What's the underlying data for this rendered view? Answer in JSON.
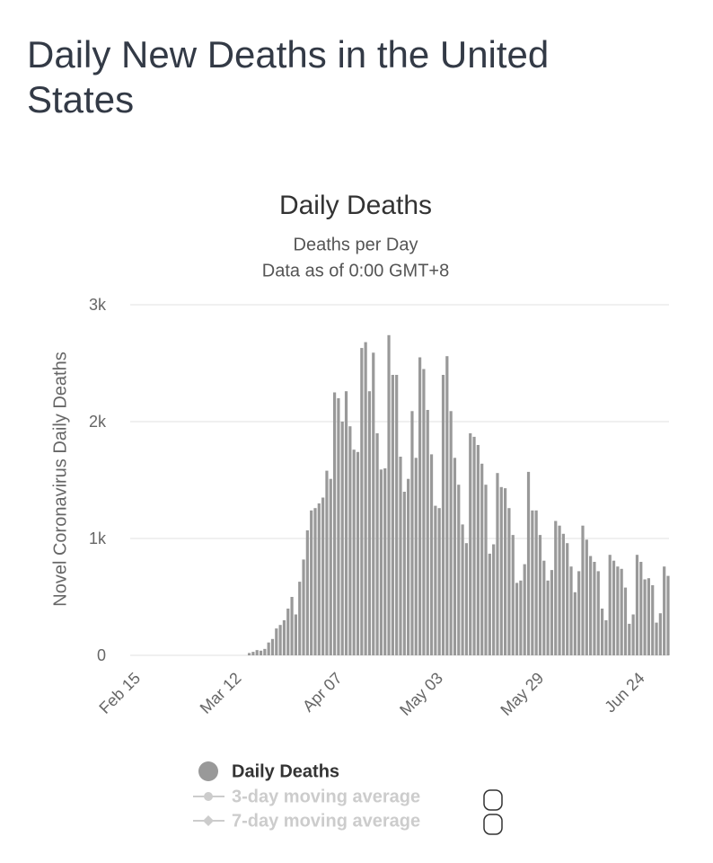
{
  "page_title": "Daily New Deaths in the United States",
  "chart_data": {
    "type": "bar",
    "title": "Daily Deaths",
    "subtitle": "Deaths per Day",
    "note": "Data as of 0:00 GMT+8",
    "y_label": "Novel Coronavirus Daily Deaths",
    "categories": [
      "Feb 15",
      null,
      null,
      null,
      null,
      null,
      null,
      null,
      null,
      null,
      null,
      null,
      null,
      null,
      null,
      null,
      null,
      null,
      null,
      null,
      null,
      null,
      null,
      null,
      null,
      null,
      "Mar 12",
      null,
      null,
      null,
      null,
      null,
      null,
      null,
      null,
      null,
      null,
      null,
      null,
      null,
      null,
      null,
      null,
      null,
      null,
      null,
      null,
      null,
      null,
      null,
      null,
      null,
      "Apr 07",
      null,
      null,
      null,
      null,
      null,
      null,
      null,
      null,
      null,
      null,
      null,
      null,
      null,
      null,
      null,
      null,
      null,
      null,
      null,
      null,
      null,
      null,
      null,
      null,
      null,
      "May 03",
      null,
      null,
      null,
      null,
      null,
      null,
      null,
      null,
      null,
      null,
      null,
      null,
      null,
      null,
      null,
      null,
      null,
      null,
      null,
      null,
      null,
      null,
      null,
      null,
      null,
      "May 29",
      null,
      null,
      null,
      null,
      null,
      null,
      null,
      null,
      null,
      null,
      null,
      null,
      null,
      null,
      null,
      null,
      null,
      null,
      null,
      null,
      null,
      null,
      null,
      null,
      null,
      "Jun 24",
      null,
      null,
      null,
      null,
      null,
      null,
      null,
      null
    ],
    "series": [
      {
        "name": "Daily Deaths",
        "color": "#999999",
        "values": [
          0,
          0,
          0,
          0,
          0,
          0,
          0,
          0,
          0,
          0,
          0,
          0,
          0,
          0,
          0,
          0,
          0,
          0,
          0,
          0,
          0,
          0,
          0,
          0,
          0,
          0,
          0,
          0,
          0,
          0,
          20,
          30,
          45,
          40,
          55,
          110,
          140,
          230,
          260,
          300,
          400,
          500,
          350,
          630,
          820,
          1070,
          1240,
          1260,
          1300,
          1350,
          1580,
          1510,
          2250,
          2200,
          2000,
          2260,
          1960,
          1760,
          1740,
          2630,
          2680,
          2260,
          2590,
          1900,
          1590,
          1600,
          2740,
          2400,
          2400,
          1700,
          1400,
          1510,
          2090,
          1690,
          2550,
          2450,
          2100,
          1720,
          1280,
          1260,
          2400,
          2560,
          2090,
          1690,
          1460,
          1120,
          960,
          1900,
          1870,
          1800,
          1640,
          1460,
          870,
          950,
          1560,
          1440,
          1430,
          1260,
          1030,
          620,
          640,
          780,
          1570,
          1240,
          1240,
          1030,
          810,
          640,
          730,
          1150,
          1110,
          1040,
          960,
          760,
          540,
          720,
          1110,
          990,
          850,
          800,
          720,
          400,
          300,
          860,
          810,
          760,
          740,
          580,
          270,
          350,
          860,
          800,
          650,
          660,
          600,
          280,
          360,
          760,
          680
        ]
      }
    ],
    "hidden_series": [
      "3-day moving average",
      "7-day moving average"
    ],
    "ylim": [
      0,
      3000
    ],
    "yticks": [
      0,
      {
        "value": 1000,
        "label": "1k"
      },
      {
        "value": 2000,
        "label": "2k"
      },
      {
        "value": 3000,
        "label": "3k"
      }
    ],
    "grid": true
  }
}
